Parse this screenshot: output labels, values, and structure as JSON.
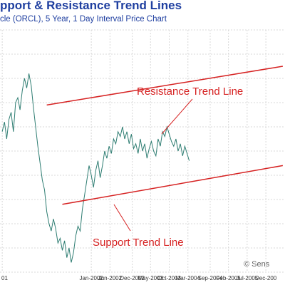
{
  "header": {
    "title": "pport & Resistance Trend Lines",
    "subtitle": "cle (ORCL), 5 Year, 1 Day Interval Price Chart"
  },
  "chart_data": {
    "type": "line",
    "title": "pport & Resistance Trend Lines",
    "subtitle": "cle (ORCL), 5 Year, 1 Day Interval Price Chart",
    "xlabel": "",
    "ylabel": "",
    "grid": true,
    "x_ticks": [
      "01",
      "Jan-2002",
      "Jun-2002",
      "Dec-2002",
      "May-2003",
      "Oct-2003",
      "Mar-2004",
      "Sep-2004",
      "Feb-2005",
      "Jul-2005",
      "Dec-200"
    ],
    "x_tick_pos": [
      0.0,
      2.0,
      2.42,
      2.92,
      3.33,
      3.75,
      4.17,
      4.67,
      5.08,
      5.5,
      5.92
    ],
    "xlim": [
      -0.05,
      6.35
    ],
    "ylim": [
      0,
      100
    ],
    "series": [
      {
        "values": [
          [
            0.0,
            58
          ],
          [
            0.05,
            62
          ],
          [
            0.1,
            55
          ],
          [
            0.15,
            63
          ],
          [
            0.2,
            66
          ],
          [
            0.25,
            58
          ],
          [
            0.3,
            70
          ],
          [
            0.35,
            72
          ],
          [
            0.4,
            67
          ],
          [
            0.45,
            75
          ],
          [
            0.5,
            80
          ],
          [
            0.55,
            76
          ],
          [
            0.6,
            82
          ],
          [
            0.65,
            77
          ],
          [
            0.7,
            68
          ],
          [
            0.75,
            60
          ],
          [
            0.8,
            52
          ],
          [
            0.85,
            45
          ],
          [
            0.9,
            38
          ],
          [
            0.95,
            34
          ],
          [
            1.0,
            25
          ],
          [
            1.05,
            20
          ],
          [
            1.1,
            17
          ],
          [
            1.15,
            22
          ],
          [
            1.2,
            18
          ],
          [
            1.25,
            12
          ],
          [
            1.3,
            14
          ],
          [
            1.35,
            9
          ],
          [
            1.4,
            13
          ],
          [
            1.45,
            6
          ],
          [
            1.5,
            10
          ],
          [
            1.55,
            4
          ],
          [
            1.6,
            8
          ],
          [
            1.65,
            15
          ],
          [
            1.7,
            19
          ],
          [
            1.75,
            17
          ],
          [
            1.8,
            26
          ],
          [
            1.85,
            32
          ],
          [
            1.9,
            38
          ],
          [
            1.95,
            44
          ],
          [
            2.0,
            40
          ],
          [
            2.05,
            35
          ],
          [
            2.1,
            42
          ],
          [
            2.15,
            46
          ],
          [
            2.2,
            39
          ],
          [
            2.25,
            44
          ],
          [
            2.3,
            50
          ],
          [
            2.35,
            47
          ],
          [
            2.4,
            52
          ],
          [
            2.45,
            49
          ],
          [
            2.5,
            55
          ],
          [
            2.55,
            53
          ],
          [
            2.6,
            58
          ],
          [
            2.65,
            56
          ],
          [
            2.7,
            60
          ],
          [
            2.75,
            55
          ],
          [
            2.8,
            58
          ],
          [
            2.85,
            53
          ],
          [
            2.9,
            57
          ],
          [
            2.95,
            51
          ],
          [
            3.0,
            53
          ],
          [
            3.05,
            49
          ],
          [
            3.1,
            55
          ],
          [
            3.15,
            50
          ],
          [
            3.2,
            53
          ],
          [
            3.25,
            47
          ],
          [
            3.3,
            51
          ],
          [
            3.35,
            54
          ],
          [
            3.4,
            50
          ],
          [
            3.45,
            48
          ],
          [
            3.5,
            55
          ],
          [
            3.55,
            52
          ],
          [
            3.6,
            58
          ],
          [
            3.65,
            56
          ],
          [
            3.7,
            60
          ],
          [
            3.75,
            57
          ],
          [
            3.8,
            54
          ],
          [
            3.85,
            52
          ],
          [
            3.9,
            55
          ],
          [
            3.95,
            50
          ],
          [
            4.0,
            53
          ],
          [
            4.05,
            48
          ],
          [
            4.1,
            52
          ],
          [
            4.15,
            49
          ],
          [
            4.2,
            46
          ]
        ]
      }
    ],
    "trendlines": [
      {
        "name": "Resistance Trend Line",
        "from": [
          1.0,
          69
        ],
        "to": [
          6.3,
          85
        ]
      },
      {
        "name": "Support Trend Line",
        "from": [
          1.35,
          28
        ],
        "to": [
          6.3,
          44
        ]
      }
    ],
    "annotations": [
      {
        "text": "Resistance Trend Line"
      },
      {
        "text": "Support Trend Line"
      },
      {
        "text": "© Sens"
      }
    ],
    "colors": {
      "price": "#2e7d72",
      "trend": "#d62222",
      "title": "#1f3fa0",
      "grid": "#d8d8d8"
    }
  }
}
